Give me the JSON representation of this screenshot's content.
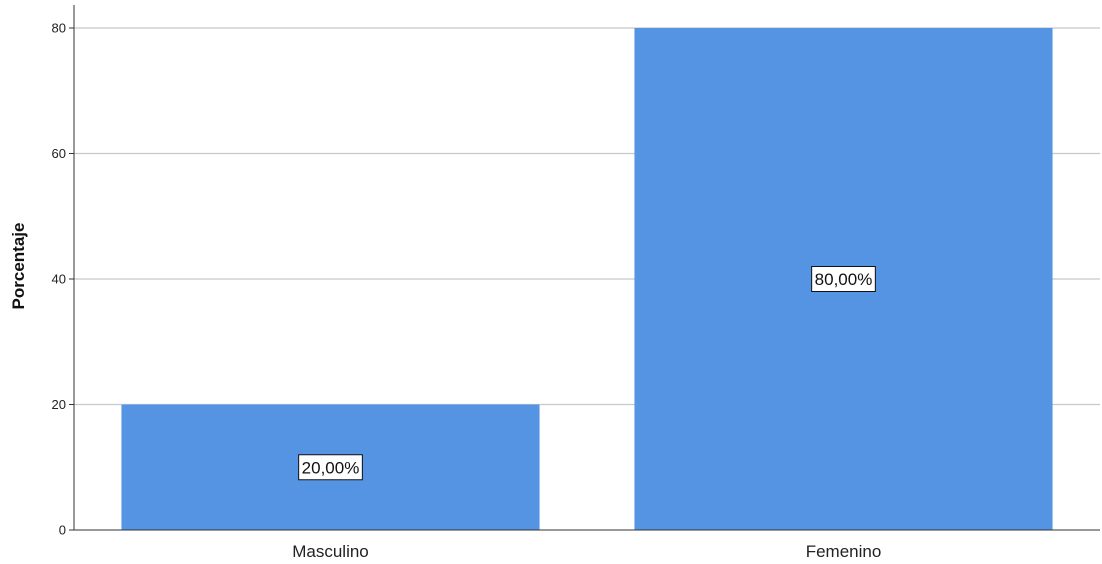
{
  "chart_data": {
    "type": "bar",
    "categories": [
      "Masculino",
      "Femenino"
    ],
    "values": [
      20,
      80
    ],
    "data_labels": [
      "20,00%",
      "80,00%"
    ],
    "title": "",
    "xlabel": "",
    "ylabel": "Porcentaje",
    "ylim": [
      0,
      80
    ],
    "yticks": [
      0,
      20,
      40,
      60,
      80
    ],
    "grid": true,
    "bar_color": "#5594e2",
    "grid_color": "#c8c8c8"
  }
}
